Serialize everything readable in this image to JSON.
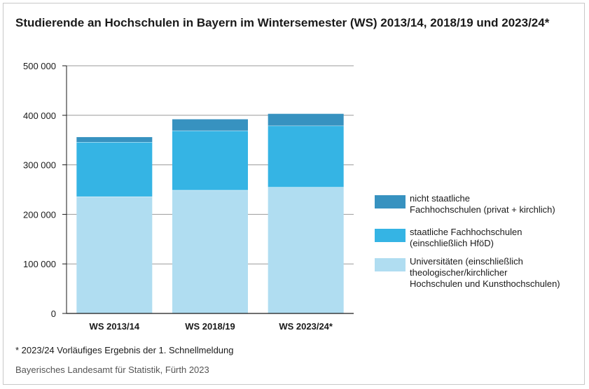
{
  "title": "Studierende an Hochschulen in Bayern im Wintersemester (WS) 2013/14, 2018/19 und 2023/24*",
  "footnote": "* 2023/24 Vorläufiges Ergebnis der 1. Schnellmeldung",
  "source": "Bayerisches Landesamt für Statistik, Fürth 2023",
  "legend": [
    {
      "label_lines": [
        "nicht staatliche",
        "Fachhochschulen (privat + kirchlich)"
      ],
      "color": "#3792c0"
    },
    {
      "label_lines": [
        "staatliche Fachhochschulen",
        "(einschließlich HföD)"
      ],
      "color": "#35b4e4"
    },
    {
      "label_lines": [
        "Universitäten (einschließlich",
        "theologischer/kirchlicher",
        "Hochschulen und Kunsthochschulen)"
      ],
      "color": "#b0ddf1"
    }
  ],
  "chart_data": {
    "type": "bar",
    "stacked": true,
    "categories": [
      "WS 2013/14",
      "WS 2018/19",
      "WS 2023/24*"
    ],
    "series": [
      {
        "name": "Universitäten (einschließlich theologischer/kirchlicher Hochschulen und Kunsthochschulen)",
        "values": [
          236000,
          249000,
          255000
        ],
        "color": "#b0ddf1"
      },
      {
        "name": "staatliche Fachhochschulen (einschließlich HföD)",
        "values": [
          110000,
          120000,
          124000
        ],
        "color": "#35b4e4"
      },
      {
        "name": "nicht staatliche Fachhochschulen (privat + kirchlich)",
        "values": [
          10000,
          23000,
          24000
        ],
        "color": "#3792c0"
      }
    ],
    "ylim": [
      0,
      500000
    ],
    "yticks": [
      0,
      100000,
      200000,
      300000,
      400000,
      500000
    ],
    "ytick_labels": [
      "0",
      "100 000",
      "200 000",
      "300 000",
      "400 000",
      "500 000"
    ],
    "xlabel": "",
    "ylabel": "",
    "grid": true
  }
}
